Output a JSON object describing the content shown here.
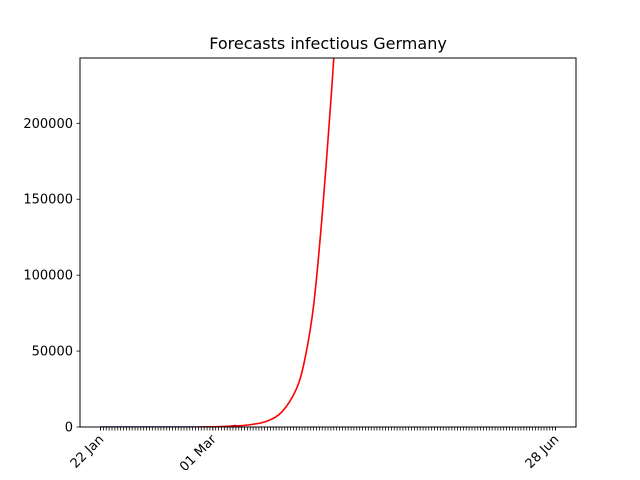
{
  "chart_data": {
    "type": "line",
    "title": "Forecasts infectious Germany",
    "xlabel": "",
    "ylabel": "",
    "x_axis": {
      "type": "date",
      "start": "2020-01-22",
      "end": "2020-06-28",
      "labeled_ticks": [
        {
          "date": "2020-01-22",
          "label": "22 Jan"
        },
        {
          "date": "2020-03-01",
          "label": "01 Mar"
        },
        {
          "date": "2020-06-28",
          "label": "28 Jun"
        }
      ],
      "minor_ticks": "daily",
      "tick_label_rotation": "45 degrees"
    },
    "ylim": [
      0,
      243000
    ],
    "y_ticks": [
      0,
      50000,
      100000,
      150000,
      200000
    ],
    "grid": false,
    "legend": "none",
    "series": [
      {
        "color": "#00008b",
        "points": [
          {
            "x": "2020-01-22",
            "y": 0
          },
          {
            "x": "2020-02-01",
            "y": 8
          },
          {
            "x": "2020-02-15",
            "y": 16
          },
          {
            "x": "2020-02-27",
            "y": 20
          },
          {
            "x": "2020-03-01",
            "y": 60
          },
          {
            "x": "2020-03-05",
            "y": 200
          },
          {
            "x": "2020-03-09",
            "y": 1000
          }
        ]
      },
      {
        "color": "#ff0000",
        "points": [
          {
            "x": "2020-02-25",
            "y": 0
          },
          {
            "x": "2020-03-01",
            "y": 100
          },
          {
            "x": "2020-03-10",
            "y": 800
          },
          {
            "x": "2020-03-15",
            "y": 1800
          },
          {
            "x": "2020-03-20",
            "y": 4000
          },
          {
            "x": "2020-03-25",
            "y": 10000
          },
          {
            "x": "2020-03-30",
            "y": 25000
          },
          {
            "x": "2020-04-02",
            "y": 45000
          },
          {
            "x": "2020-04-05",
            "y": 80000
          },
          {
            "x": "2020-04-08",
            "y": 140000
          },
          {
            "x": "2020-04-11",
            "y": 215000
          },
          {
            "x": "2020-04-12",
            "y": 243000
          }
        ]
      }
    ]
  }
}
